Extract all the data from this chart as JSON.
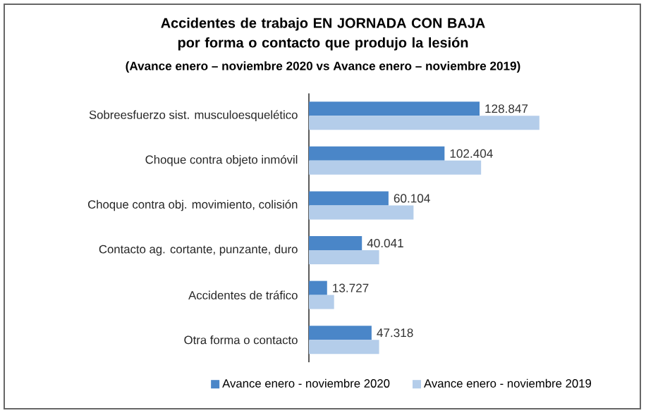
{
  "chart_data": {
    "type": "bar",
    "orientation": "horizontal",
    "title": "Accidentes de trabajo EN JORNADA CON BAJA por forma o contacto que produjo la lesión",
    "subtitle": "(Avance enero – noviembre 2020 vs Avance enero – noviembre 2019)",
    "categories": [
      "Sobreesfuerzo sist. musculoesquelético",
      "Choque contra objeto inmóvil",
      "Choque contra obj. movimiento, colisión",
      "Contacto ag. cortante, punzante, duro",
      "Accidentes de tráfico",
      "Otra forma o contacto"
    ],
    "series": [
      {
        "name": "Avance enero - noviembre 2020",
        "color": "#4a86c8",
        "values": [
          128847,
          102404,
          60104,
          40041,
          13727,
          47318
        ],
        "value_labels": [
          "128.847",
          "102.404",
          "60.104",
          "40.041",
          "13.727",
          "47.318"
        ]
      },
      {
        "name": "Avance enero - noviembre 2019",
        "color": "#b4cdea",
        "values": [
          174000,
          130000,
          79000,
          53000,
          19000,
          53000
        ]
      }
    ],
    "legend": "bottom"
  }
}
